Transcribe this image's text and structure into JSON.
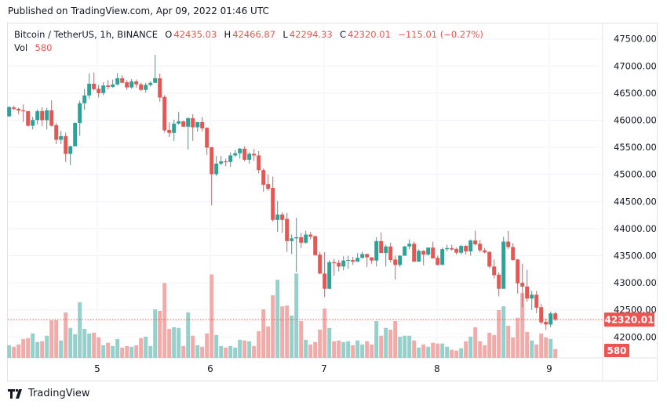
{
  "published": "Published on TradingView.com, Apr 09, 2022 01:46 UTC",
  "legend": {
    "symbol": "Bitcoin / TetherUS, 1h, BINANCE",
    "o_label": "O",
    "o": "42435.03",
    "h_label": "H",
    "h": "42466.87",
    "l_label": "L",
    "l": "42294.33",
    "c_label": "C",
    "c": "42320.01",
    "change": "−115.01 (−0.27%)",
    "vol_label": "Vol",
    "vol": "580"
  },
  "footer": {
    "brand": "TradingView",
    "logo_icon": "tradingview-logo-icon"
  },
  "colors": {
    "up": "#26a69a",
    "down": "#ef5350",
    "up_volume": "#92d2cc",
    "down_volume": "#f7a9a7",
    "grid": "#f0f3fa",
    "text": "#131722"
  },
  "chart_data": {
    "type": "candlestick",
    "interval": "1h",
    "ylim": [
      41750,
      47750
    ],
    "y_ticks": [
      "47500.00",
      "47000.00",
      "46500.00",
      "46000.00",
      "45500.00",
      "45000.00",
      "44500.00",
      "44000.00",
      "43500.00",
      "43000.00",
      "42500.00",
      "42000.00"
    ],
    "x_ticks": [
      "5",
      "6",
      "7",
      "8",
      "9"
    ],
    "current_price": "42320.01",
    "current_volume": "580",
    "grid": true,
    "candles_ohlcv": [
      [
        46072,
        46250,
        46060,
        46245,
        830
      ],
      [
        46235,
        46270,
        46190,
        46206,
        730
      ],
      [
        46211,
        46230,
        46110,
        46178,
        880
      ],
      [
        46182,
        46293,
        45970,
        46163,
        1240
      ],
      [
        46168,
        46168,
        45880,
        45898,
        1290
      ],
      [
        45898,
        46060,
        45830,
        46004,
        1600
      ],
      [
        46004,
        46200,
        45920,
        46168,
        1040
      ],
      [
        46168,
        46240,
        45890,
        46000,
        1090
      ],
      [
        46000,
        46230,
        45830,
        46182,
        1450
      ],
      [
        46182,
        46365,
        45880,
        45898,
        2470
      ],
      [
        45908,
        45950,
        45560,
        45639,
        2470
      ],
      [
        45639,
        45800,
        45560,
        45706,
        1140
      ],
      [
        45706,
        45770,
        45230,
        45379,
        2980
      ],
      [
        45379,
        45530,
        45170,
        45519,
        1960
      ],
      [
        45519,
        45960,
        45519,
        45950,
        1550
      ],
      [
        45950,
        46360,
        45710,
        46312,
        3640
      ],
      [
        46312,
        46580,
        46190,
        46457,
        1900
      ],
      [
        46457,
        46865,
        46400,
        46673,
        1600
      ],
      [
        46673,
        46880,
        46550,
        46572,
        1650
      ],
      [
        46580,
        46650,
        46420,
        46500,
        1340
      ],
      [
        46500,
        46700,
        46460,
        46640,
        830
      ],
      [
        46640,
        46740,
        46570,
        46615,
        990
      ],
      [
        46615,
        46750,
        46600,
        46660,
        780
      ],
      [
        46660,
        46870,
        46640,
        46774,
        1240
      ],
      [
        46774,
        46830,
        46690,
        46690,
        680
      ],
      [
        46700,
        46740,
        46560,
        46605,
        780
      ],
      [
        46605,
        46760,
        46580,
        46716,
        730
      ],
      [
        46716,
        46750,
        46600,
        46660,
        830
      ],
      [
        46660,
        46690,
        46540,
        46560,
        1290
      ],
      [
        46560,
        46690,
        46510,
        46650,
        1390
      ],
      [
        46650,
        46720,
        46620,
        46690,
        780
      ],
      [
        46690,
        47207,
        46690,
        46774,
        3180
      ],
      [
        46774,
        46860,
        46340,
        46418,
        3080
      ],
      [
        46430,
        46460,
        45770,
        45812,
        4910
      ],
      [
        45820,
        45960,
        45690,
        45764,
        1900
      ],
      [
        45764,
        46010,
        45620,
        45937,
        2010
      ],
      [
        45937,
        46150,
        45920,
        45980,
        1960
      ],
      [
        45980,
        45990,
        45880,
        45880,
        780
      ],
      [
        45880,
        46050,
        45460,
        46038,
        2980
      ],
      [
        46038,
        46110,
        45620,
        45870,
        1450
      ],
      [
        45870,
        45966,
        45790,
        45966,
        830
      ],
      [
        45966,
        46060,
        45790,
        45850,
        730
      ],
      [
        45860,
        45870,
        45360,
        45494,
        1600
      ],
      [
        45500,
        45510,
        44427,
        45004,
        5470
      ],
      [
        45004,
        45340,
        44970,
        45200,
        1500
      ],
      [
        45200,
        45340,
        45170,
        45240,
        780
      ],
      [
        45240,
        45290,
        45150,
        45230,
        680
      ],
      [
        45230,
        45410,
        45140,
        45350,
        780
      ],
      [
        45350,
        45450,
        45320,
        45390,
        680
      ],
      [
        45390,
        45490,
        45290,
        45475,
        1190
      ],
      [
        45475,
        45520,
        45240,
        45270,
        1140
      ],
      [
        45270,
        45410,
        45200,
        45380,
        1090
      ],
      [
        45380,
        45470,
        45250,
        45350,
        780
      ],
      [
        45350,
        45430,
        45020,
        45080,
        1750
      ],
      [
        45080,
        45110,
        44680,
        44810,
        3180
      ],
      [
        44820,
        45000,
        44700,
        44735,
        2060
      ],
      [
        44750,
        44960,
        44130,
        44160,
        4100
      ],
      [
        44160,
        44510,
        43940,
        44260,
        5120
      ],
      [
        44260,
        44300,
        43920,
        44160,
        3380
      ],
      [
        44180,
        44290,
        43570,
        43770,
        3430
      ],
      [
        43770,
        43890,
        43530,
        43820,
        2770
      ],
      [
        43820,
        44200,
        43200,
        43840,
        5530
      ],
      [
        43840,
        43920,
        43640,
        43740,
        2410
      ],
      [
        43740,
        43960,
        43720,
        43890,
        1190
      ],
      [
        43890,
        43940,
        43800,
        43850,
        880
      ],
      [
        43860,
        43870,
        43500,
        43510,
        1040
      ],
      [
        43520,
        43570,
        43160,
        43170,
        1850
      ],
      [
        43170,
        43566,
        42738,
        42890,
        3230
      ],
      [
        42890,
        43420,
        42880,
        43380,
        1960
      ],
      [
        43380,
        43440,
        43130,
        43360,
        1090
      ],
      [
        43370,
        43420,
        43210,
        43300,
        1140
      ],
      [
        43300,
        43490,
        43230,
        43410,
        1040
      ],
      [
        43410,
        43500,
        43260,
        43420,
        1090
      ],
      [
        43420,
        43480,
        43330,
        43390,
        830
      ],
      [
        43390,
        43550,
        43390,
        43460,
        1140
      ],
      [
        43460,
        43570,
        43450,
        43530,
        880
      ],
      [
        43530,
        43540,
        43290,
        43470,
        1090
      ],
      [
        43470,
        43470,
        43350,
        43410,
        880
      ],
      [
        43410,
        43840,
        43300,
        43770,
        2410
      ],
      [
        43770,
        43930,
        43550,
        43550,
        1450
      ],
      [
        43550,
        43700,
        43300,
        43670,
        1960
      ],
      [
        43670,
        43740,
        43370,
        43420,
        1850
      ],
      [
        43430,
        43500,
        43060,
        43330,
        2410
      ],
      [
        43330,
        43510,
        43290,
        43500,
        1390
      ],
      [
        43500,
        43680,
        43500,
        43670,
        1450
      ],
      [
        43670,
        43800,
        43620,
        43720,
        1450
      ],
      [
        43720,
        43760,
        43390,
        43390,
        1140
      ],
      [
        43390,
        43620,
        43390,
        43590,
        680
      ],
      [
        43590,
        43600,
        43320,
        43520,
        880
      ],
      [
        43520,
        43650,
        43500,
        43650,
        730
      ],
      [
        43650,
        43760,
        43450,
        43450,
        990
      ],
      [
        43460,
        43500,
        43320,
        43330,
        940
      ],
      [
        43330,
        43650,
        43330,
        43620,
        940
      ],
      [
        43620,
        43700,
        43580,
        43640,
        730
      ],
      [
        43640,
        43700,
        43590,
        43615,
        530
      ],
      [
        43625,
        43650,
        43520,
        43555,
        480
      ],
      [
        43555,
        43700,
        43520,
        43680,
        630
      ],
      [
        43680,
        43700,
        43520,
        43580,
        1090
      ],
      [
        43580,
        43800,
        43500,
        43780,
        1390
      ],
      [
        43780,
        43960,
        43690,
        43710,
        2010
      ],
      [
        43720,
        43790,
        43560,
        43600,
        1090
      ],
      [
        43600,
        43640,
        43540,
        43560,
        830
      ],
      [
        43570,
        43580,
        43270,
        43300,
        1650
      ],
      [
        43300,
        43430,
        43080,
        43140,
        1500
      ],
      [
        43150,
        43190,
        42750,
        42890,
        3130
      ],
      [
        42890,
        43850,
        42890,
        43760,
        3380
      ],
      [
        43760,
        43960,
        43620,
        43660,
        2110
      ],
      [
        43660,
        43730,
        43410,
        43420,
        1340
      ],
      [
        43430,
        43440,
        42800,
        42990,
        2620
      ],
      [
        43000,
        43350,
        42550,
        42930,
        4250
      ],
      [
        42930,
        43240,
        42650,
        42710,
        1700
      ],
      [
        42710,
        42850,
        42500,
        42780,
        1140
      ],
      [
        42780,
        42850,
        42440,
        42540,
        880
      ],
      [
        42550,
        42610,
        42230,
        42270,
        1600
      ],
      [
        42280,
        42340,
        42130,
        42230,
        1340
      ],
      [
        42230,
        42470,
        42180,
        42435,
        1240
      ],
      [
        42435.03,
        42466.87,
        42294.33,
        42320.01,
        580
      ]
    ]
  }
}
